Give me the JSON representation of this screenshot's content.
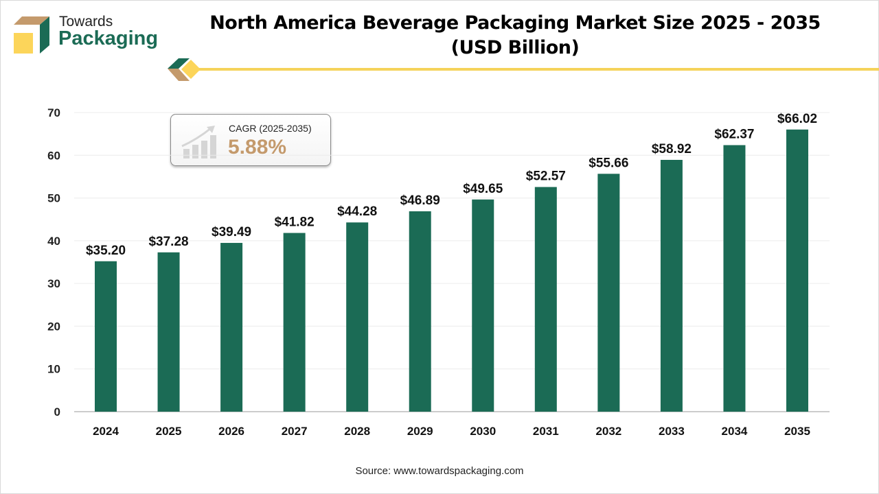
{
  "brand": {
    "line1": "Towards",
    "line2": "Packaging"
  },
  "title_line1": "North America Beverage Packaging Market Size 2025 - 2035",
  "title_line2": "(USD Billion)",
  "cagr": {
    "label": "CAGR (2025-2035)",
    "value": "5.88%"
  },
  "source": "Source: www.towardspackaging.com",
  "colors": {
    "bar": "#1b6b55",
    "accent": "#c49a6c",
    "line": "#f5d35a"
  },
  "chart_data": {
    "type": "bar",
    "categories": [
      "2024",
      "2025",
      "2026",
      "2027",
      "2028",
      "2029",
      "2030",
      "2031",
      "2032",
      "2033",
      "2034",
      "2035"
    ],
    "values": [
      35.2,
      37.28,
      39.49,
      41.82,
      44.28,
      46.89,
      49.65,
      52.57,
      55.66,
      58.92,
      62.37,
      66.02
    ],
    "data_labels": [
      "$35.20",
      "$37.28",
      "$39.49",
      "$41.82",
      "$44.28",
      "$46.89",
      "$49.65",
      "$52.57",
      "$55.66",
      "$58.92",
      "$62.37",
      "$66.02"
    ],
    "yticks": [
      "0",
      "10",
      "20",
      "30",
      "40",
      "50",
      "60",
      "70"
    ],
    "ylim": [
      0,
      70
    ],
    "grid": true,
    "title": "North America Beverage Packaging Market Size 2025 - 2035 (USD Billion)"
  }
}
